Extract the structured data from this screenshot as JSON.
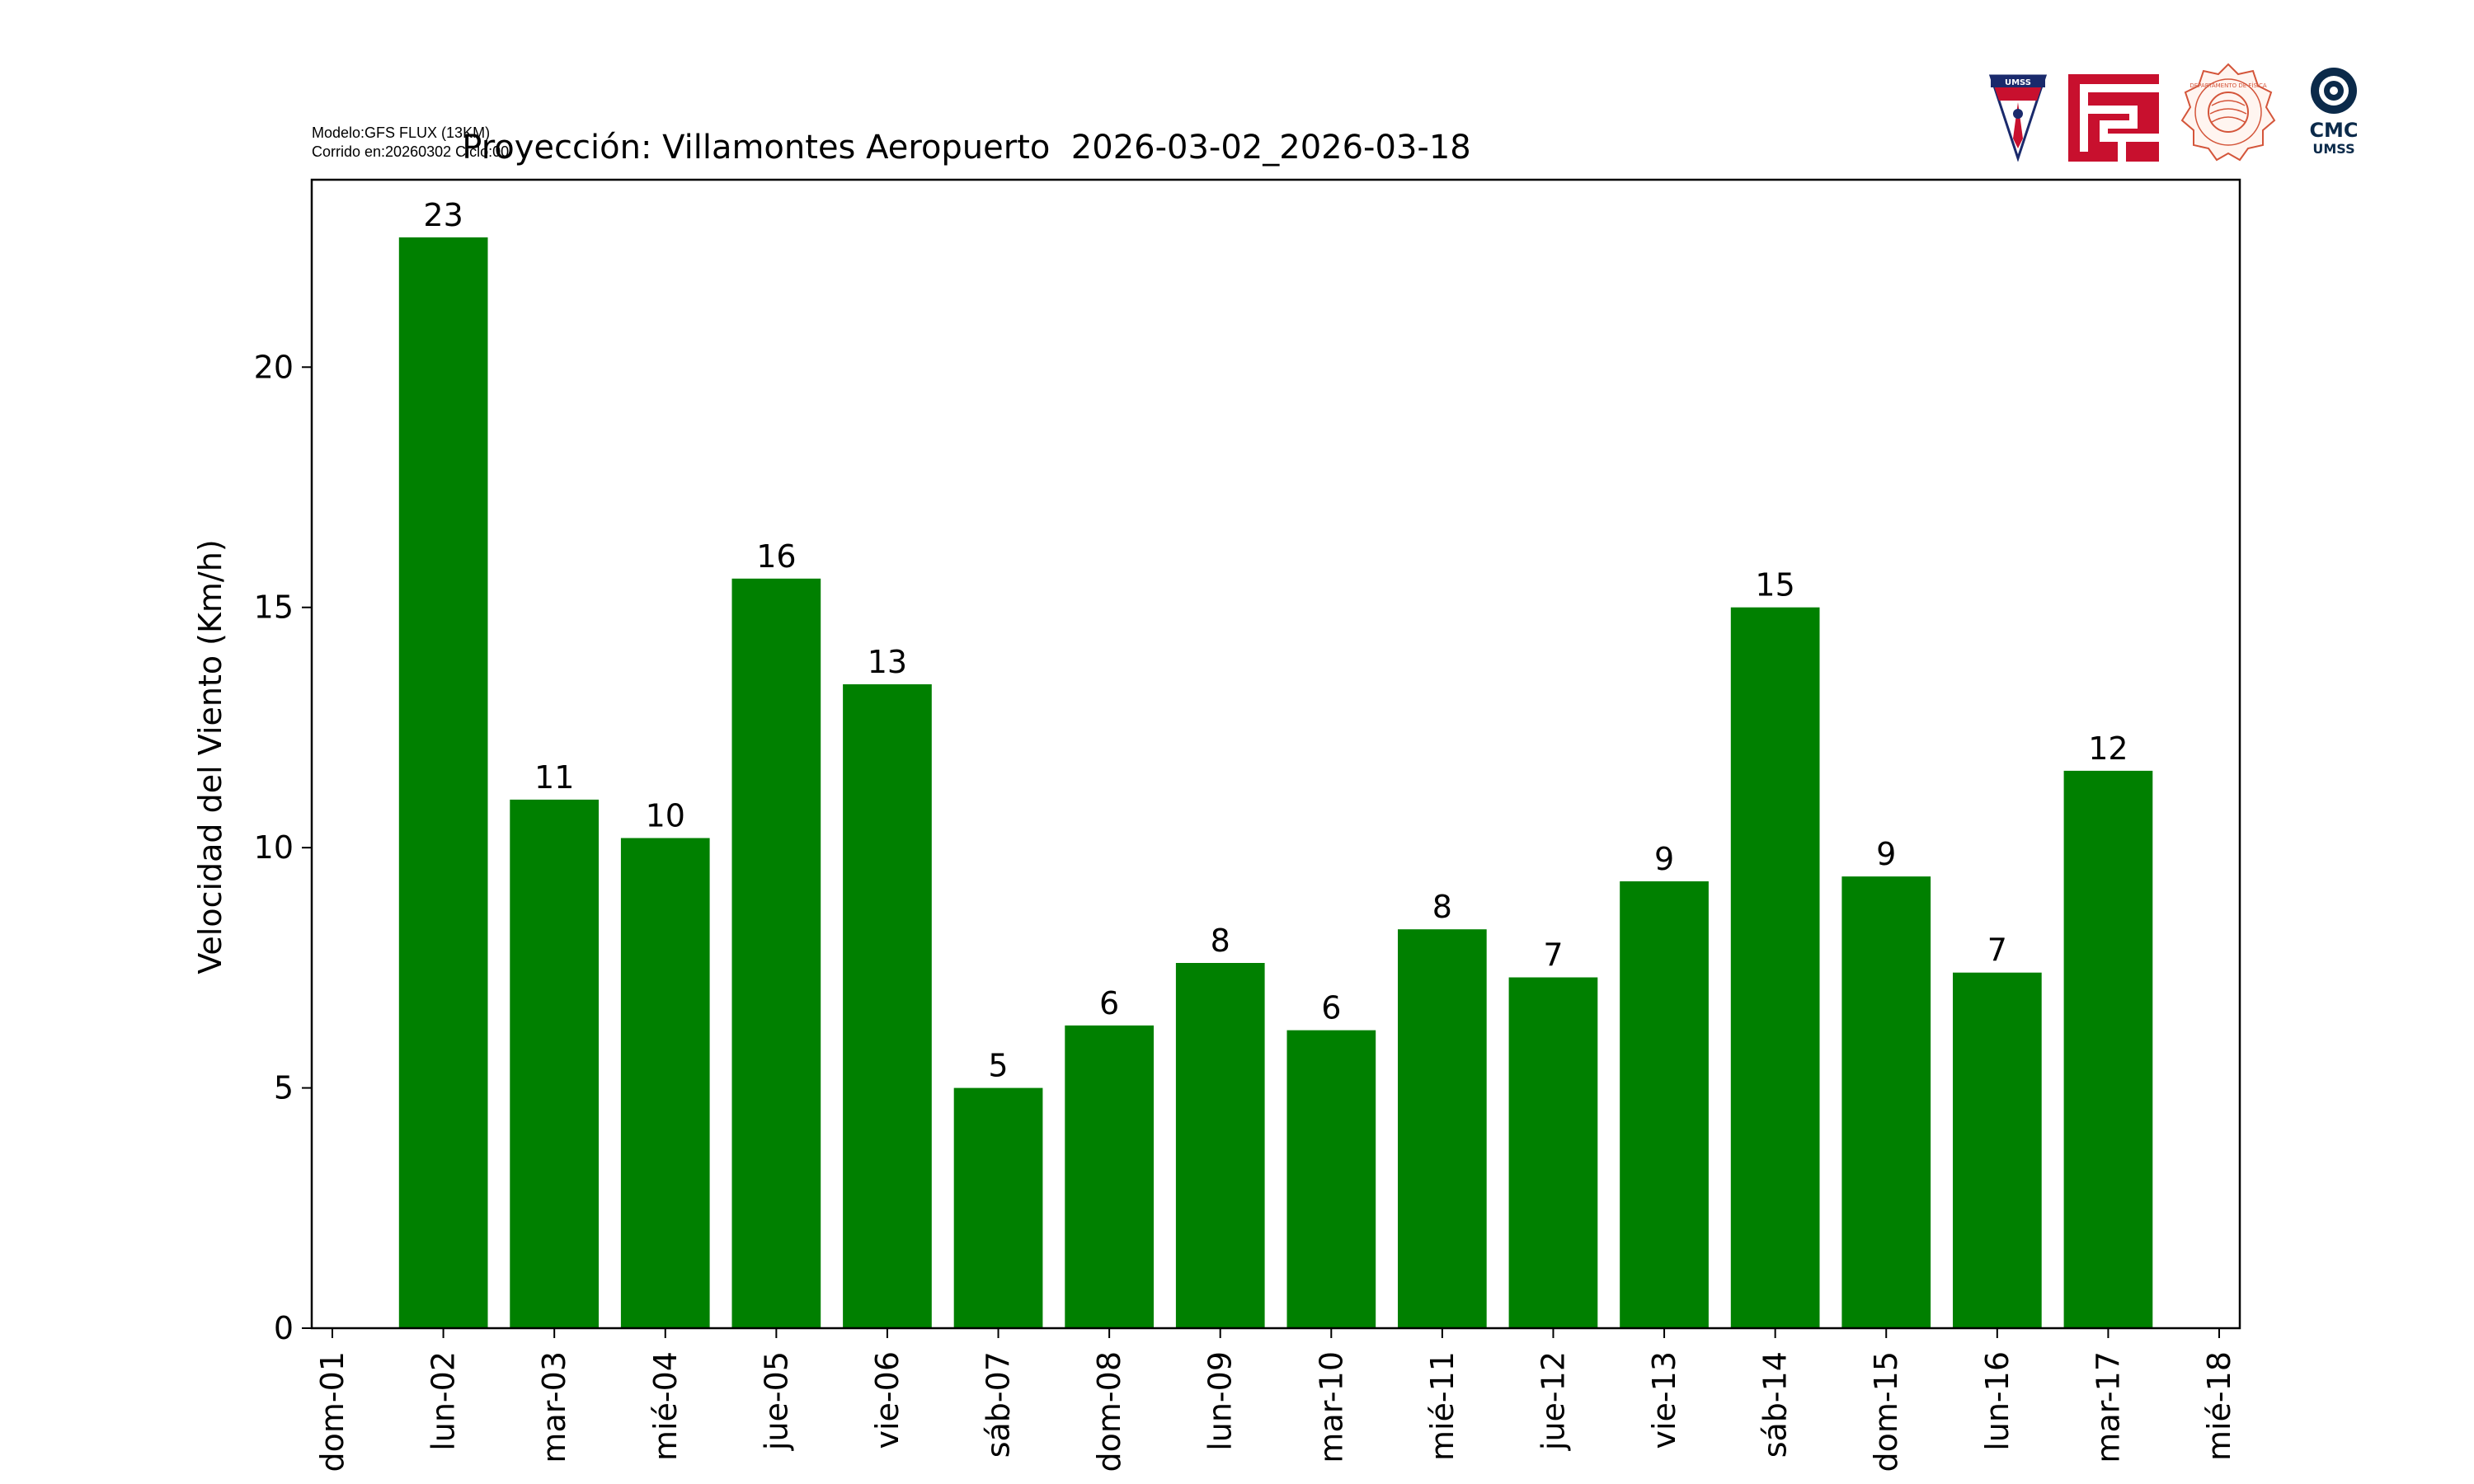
{
  "header": {
    "model_line": "Modelo:GFS FLUX (13KM)",
    "run_line": "Corrido en:20260302 Ciclo:00"
  },
  "logos": {
    "umss_shield_text": "UMSS",
    "cmc_text": "CMC",
    "cmc_sub": "UMSS",
    "physics_seal_text": "DEPARTAMENTO DE FÍSICA",
    "brand_red": "#c8102e",
    "brand_navy": "#0b2a4a"
  },
  "chart_data": {
    "type": "bar",
    "title": "Proyección: Villamontes Aeropuerto  2026-03-02_2026-03-18",
    "xlabel": "",
    "ylabel": "Velocidad del Viento (Km/h)",
    "bar_color": "#008000",
    "x_ticks": [
      "dom-01",
      "lun-02",
      "mar-03",
      "mié-04",
      "jue-05",
      "vie-06",
      "sáb-07",
      "dom-08",
      "lun-09",
      "mar-10",
      "mié-11",
      "jue-12",
      "vie-13",
      "sáb-14",
      "dom-15",
      "lun-16",
      "mar-17",
      "mié-18"
    ],
    "categories": [
      "lun-02",
      "mar-03",
      "mié-04",
      "jue-05",
      "vie-06",
      "sáb-07",
      "dom-08",
      "lun-09",
      "mar-10",
      "mié-11",
      "jue-12",
      "vie-13",
      "sáb-14",
      "dom-15",
      "lun-16",
      "mar-17"
    ],
    "values": [
      22.7,
      11.0,
      10.2,
      15.6,
      13.4,
      5.0,
      6.3,
      7.6,
      6.2,
      8.3,
      7.3,
      9.3,
      15.0,
      9.4,
      7.4,
      11.6
    ],
    "labels": [
      "23",
      "11",
      "10",
      "16",
      "13",
      "5",
      "6",
      "8",
      "6",
      "8",
      "7",
      "9",
      "15",
      "9",
      "7",
      "12"
    ],
    "ylim": [
      0,
      23.9
    ],
    "y_ticks": [
      0,
      5,
      10,
      15,
      20
    ],
    "grid": false,
    "legend": "none"
  }
}
